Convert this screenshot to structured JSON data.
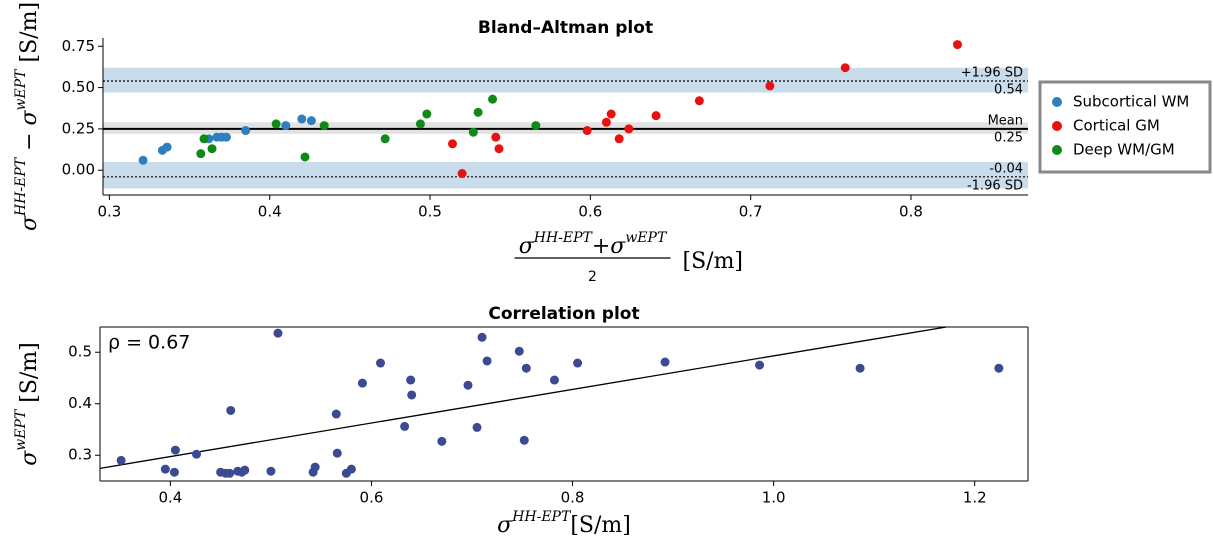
{
  "chart_data": [
    {
      "type": "scatter",
      "title": "Bland–Altman plot",
      "xlabel": {
        "numerator": [
          "σ",
          "HH-EPT",
          "+σ",
          "wEPT"
        ],
        "denominator": "2",
        "unit": "[S/m]"
      },
      "ylabel": [
        "σ",
        "HH-EPT",
        " − σ",
        "wEPT",
        " [S/m]"
      ],
      "xlim": [
        0.296,
        0.873
      ],
      "ylim": [
        -0.15,
        0.8
      ],
      "xticks": [
        0.3,
        0.4,
        0.5,
        0.6,
        0.7,
        0.8
      ],
      "yticks": [
        {
          "value": 0,
          "label": "0.00"
        },
        0.25,
        {
          "value": 0.5,
          "label": "0.50"
        },
        0.75
      ],
      "spines": [
        "left",
        "bottom"
      ],
      "legend": "outside right",
      "bands": [
        {
          "from": 0.47,
          "to": 0.62,
          "color": "#c9dcec"
        },
        {
          "from": 0.22,
          "to": 0.29,
          "color": "#e2e2e2"
        },
        {
          "from": -0.11,
          "to": 0.05,
          "color": "#c9dcec"
        }
      ],
      "reference_lines": [
        {
          "label": "+1.96 SD",
          "value": 0.54,
          "style": "dotted",
          "label_position": "above"
        },
        {
          "label": "Mean",
          "value": 0.25,
          "style": "solid",
          "label_position": "above"
        },
        {
          "label": "-1.96 SD",
          "value": -0.04,
          "style": "dotted",
          "label_position": "below"
        }
      ],
      "series": [
        {
          "name": "Subcortical WM",
          "color": "#2e7fbf",
          "x": [
            0.321,
            0.333,
            0.336,
            0.362,
            0.367,
            0.37,
            0.373,
            0.385,
            0.41,
            0.42,
            0.426
          ],
          "values": [
            0.06,
            0.12,
            0.14,
            0.19,
            0.2,
            0.2,
            0.2,
            0.24,
            0.27,
            0.31,
            0.3
          ]
        },
        {
          "name": "Cortical GM",
          "color": "#e8110f",
          "x": [
            0.514,
            0.52,
            0.541,
            0.543,
            0.598,
            0.61,
            0.613,
            0.618,
            0.624,
            0.641,
            0.668,
            0.712,
            0.759,
            0.829
          ],
          "values": [
            0.16,
            -0.02,
            0.2,
            0.13,
            0.24,
            0.29,
            0.34,
            0.19,
            0.25,
            0.33,
            0.42,
            0.51,
            0.62,
            0.76
          ]
        },
        {
          "name": "Deep WM/GM",
          "color": "#0f8a17",
          "x": [
            0.357,
            0.359,
            0.364,
            0.404,
            0.422,
            0.434,
            0.472,
            0.494,
            0.498,
            0.527,
            0.53,
            0.539,
            0.566
          ],
          "values": [
            0.1,
            0.19,
            0.13,
            0.28,
            0.08,
            0.27,
            0.19,
            0.28,
            0.34,
            0.23,
            0.35,
            0.43,
            0.27
          ]
        }
      ]
    },
    {
      "type": "scatter",
      "title": "Correlation plot",
      "xlabel": {
        "parts": [
          "σ",
          "HH-EPT",
          "[S/m]"
        ]
      },
      "ylabel": [
        "σ",
        "wEPT",
        " [S/m]"
      ],
      "xlim": [
        0.33,
        1.253
      ],
      "ylim": [
        0.25,
        0.549
      ],
      "xticks": [
        0.4,
        0.6,
        0.8,
        {
          "value": 1,
          "label": "1.0"
        },
        1.2
      ],
      "yticks": [
        0.3,
        0.4,
        0.5
      ],
      "spines": [
        "left",
        "bottom",
        "top",
        "right"
      ],
      "annotation": "ρ = 0.67",
      "fit": {
        "slope": 0.326,
        "intercept": 0.167,
        "color": "#000000"
      },
      "series": [
        {
          "color": "#3b4a92",
          "x": [
            0.351,
            0.395,
            0.404,
            0.405,
            0.426,
            0.45,
            0.455,
            0.459,
            0.46,
            0.467,
            0.471,
            0.474,
            0.5,
            0.507,
            0.542,
            0.544,
            0.565,
            0.566,
            0.575,
            0.58,
            0.591,
            0.609,
            0.633,
            0.639,
            0.64,
            0.67,
            0.696,
            0.705,
            0.71,
            0.715,
            0.747,
            0.752,
            0.754,
            0.782,
            0.805,
            0.892,
            0.986,
            1.086,
            1.224
          ],
          "values": [
            0.29,
            0.273,
            0.267,
            0.31,
            0.302,
            0.267,
            0.265,
            0.265,
            0.387,
            0.269,
            0.267,
            0.271,
            0.269,
            0.537,
            0.267,
            0.277,
            0.38,
            0.304,
            0.265,
            0.273,
            0.44,
            0.479,
            0.356,
            0.446,
            0.417,
            0.327,
            0.436,
            0.354,
            0.529,
            0.483,
            0.502,
            0.329,
            0.469,
            0.446,
            0.479,
            0.481,
            0.475,
            0.469,
            0.469
          ]
        }
      ]
    }
  ]
}
